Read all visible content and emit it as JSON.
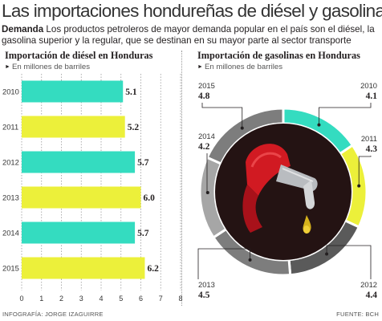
{
  "header": {
    "title": "Las importaciones hondureñas de diésel y gasolinas",
    "intro_bold": "Demanda",
    "intro_text": " Los productos petroleros de mayor demanda popular en el país son el diésel, la gasolina superior y la regular, que se destinan en su mayor parte al sector transporte"
  },
  "footer": {
    "credit": "INFOGRAFÍA: JORGE IZAGUIRRE",
    "source": "FUENTE: BCH"
  },
  "colors": {
    "teal": "#34dcc0",
    "yellow": "#ecf03a",
    "grey_mid": "#7d7d7d",
    "grey_dark": "#5a5a5a",
    "grey_light": "#a6a6a6",
    "grid": "#999999"
  },
  "chart_data": [
    {
      "type": "bar",
      "orientation": "horizontal",
      "title": "Importación de diésel en Honduras",
      "unit_label": "En millones de barriles",
      "categories": [
        "2010",
        "2011",
        "2012",
        "2013",
        "2014",
        "2015"
      ],
      "values": [
        5.1,
        5.2,
        5.7,
        6.0,
        5.7,
        6.2
      ],
      "value_labels": [
        "5.1",
        "5.2",
        "5.7",
        "6.0",
        "5.7",
        "6.2"
      ],
      "bar_colors": [
        "#34dcc0",
        "#ecf03a",
        "#34dcc0",
        "#ecf03a",
        "#34dcc0",
        "#ecf03a"
      ],
      "xlim": [
        0,
        8
      ],
      "xticks": [
        "0",
        "1",
        "2",
        "3",
        "4",
        "5",
        "6",
        "7",
        "8"
      ],
      "grid": true
    },
    {
      "type": "pie",
      "style": "donut",
      "title": "Importación de gasolinas en Honduras",
      "unit_label": "En millones de barriles",
      "categories": [
        "2010",
        "2011",
        "2012",
        "2013",
        "2014",
        "2015"
      ],
      "values": [
        4.1,
        4.3,
        4.4,
        4.5,
        4.2,
        4.8
      ],
      "value_labels": [
        "4.1",
        "4.3",
        "4.4",
        "4.5",
        "4.2",
        "4.8"
      ],
      "slice_colors": [
        "#34dcc0",
        "#ecf03a",
        "#5a5a5a",
        "#7d7d7d",
        "#a6a6a6",
        "#7d7d7d"
      ]
    }
  ]
}
